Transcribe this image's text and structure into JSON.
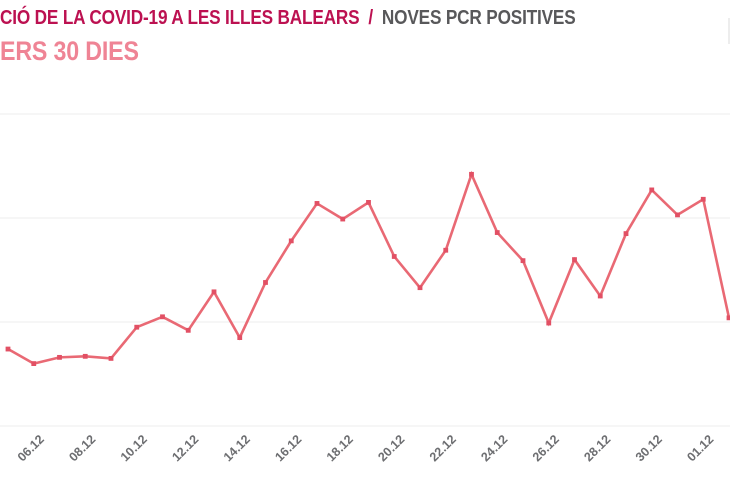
{
  "header": {
    "title_primary": "CIÓ DE LA COVID-19 A LES ILLES BALEARS",
    "title_separator": "/",
    "title_secondary": "NOVES PCR POSITIVES",
    "subtitle": "ERS 30 DIES",
    "colors": {
      "title_primary": "#bc1151",
      "title_secondary": "#58585a",
      "subtitle": "#ef8495"
    }
  },
  "chart_data": {
    "type": "line",
    "title": "",
    "xlabel": "",
    "ylabel": "",
    "legend": "none",
    "grid_on": true,
    "series": [
      {
        "name": "Noves PCR positives",
        "values": [
          74,
          60,
          66,
          67,
          65,
          95,
          105,
          92,
          129,
          85,
          138,
          178,
          214,
          199,
          215,
          163,
          133,
          169,
          242,
          186,
          159,
          99,
          160,
          125,
          185,
          227,
          203,
          218,
          104
        ]
      }
    ],
    "x_tick_labels": [
      "06.12",
      "08.12",
      "10.12",
      "12.12",
      "14.12",
      "16.12",
      "18.12",
      "20.12",
      "22.12",
      "24.12",
      "26.12",
      "28.12",
      "30.12",
      "01.12"
    ],
    "x_tick_point_indices": [
      1,
      3,
      5,
      7,
      9,
      11,
      13,
      15,
      17,
      19,
      21,
      23,
      25,
      27
    ],
    "y_gridline_values": [
      0,
      100,
      200,
      300
    ],
    "y_axis_labels_visible": false,
    "ylim": [
      0,
      323
    ],
    "line_color": "#e96974",
    "marker_color": "#e25064",
    "gridline_color": "#ececec",
    "tick_label_color": "#6d6e71"
  }
}
